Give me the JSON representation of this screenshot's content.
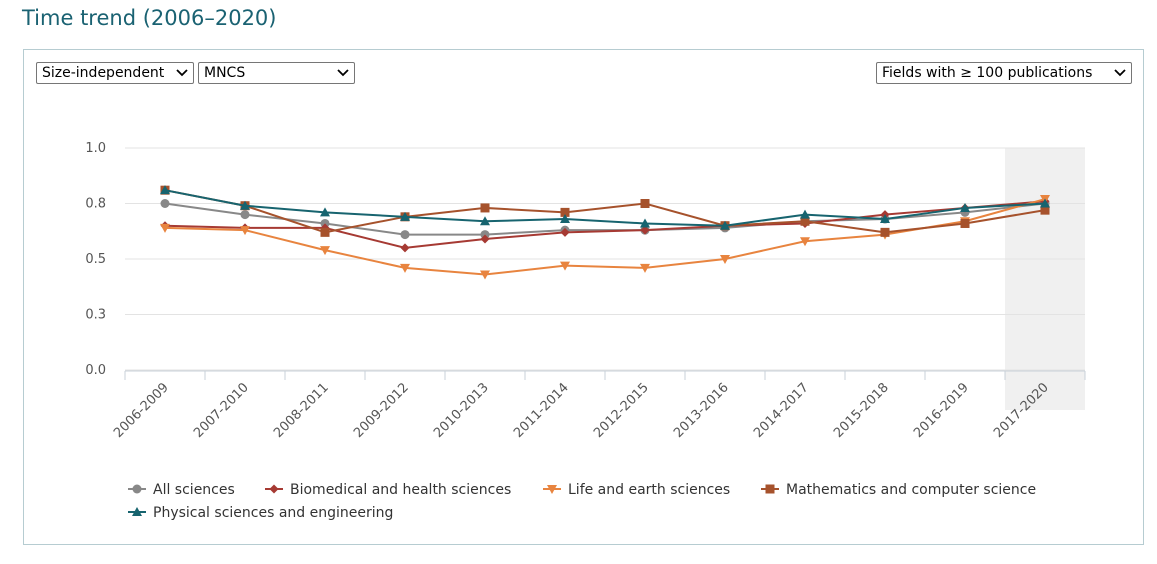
{
  "page": {
    "title": "Time trend (2006–2020)"
  },
  "controls": {
    "indicator_type": "Size-independent",
    "indicator": "MNCS",
    "fields_filter": "Fields with ≥ 100 publications"
  },
  "chart_data": {
    "type": "line",
    "title": "",
    "xlabel": "",
    "ylabel": "",
    "ylim": [
      0.0,
      1.0
    ],
    "y_ticks": [
      "0.0",
      "0.3",
      "0.5",
      "0.8",
      "1.0"
    ],
    "y_tick_values": [
      0.0,
      0.25,
      0.5,
      0.75,
      1.0
    ],
    "grid": true,
    "legend_position": "bottom",
    "highlighted_category": "2017-2020",
    "categories": [
      "2006-2009",
      "2007-2010",
      "2008-2011",
      "2009-2012",
      "2010-2013",
      "2011-2014",
      "2012-2015",
      "2013-2016",
      "2014-2017",
      "2015-2018",
      "2016-2019",
      "2017-2020"
    ],
    "series": [
      {
        "name": "All sciences",
        "color": "#888888",
        "marker": "circle",
        "values": [
          0.75,
          0.7,
          0.66,
          0.61,
          0.61,
          0.63,
          0.63,
          0.64,
          0.67,
          0.68,
          0.71,
          0.75
        ]
      },
      {
        "name": "Biomedical and health sciences",
        "color": "#a63a33",
        "marker": "diamond",
        "values": [
          0.65,
          0.64,
          0.64,
          0.55,
          0.59,
          0.62,
          0.63,
          0.65,
          0.66,
          0.7,
          0.73,
          0.76
        ]
      },
      {
        "name": "Life and earth sciences",
        "color": "#e8843f",
        "marker": "triangle-down",
        "values": [
          0.64,
          0.63,
          0.54,
          0.46,
          0.43,
          0.47,
          0.46,
          0.5,
          0.58,
          0.61,
          0.67,
          0.77
        ]
      },
      {
        "name": "Mathematics and computer science",
        "color": "#a6522c",
        "marker": "square",
        "values": [
          0.81,
          0.74,
          0.62,
          0.69,
          0.73,
          0.71,
          0.75,
          0.65,
          0.67,
          0.62,
          0.66,
          0.72
        ]
      },
      {
        "name": "Physical sciences and engineering",
        "color": "#17646f",
        "marker": "triangle-up",
        "values": [
          0.81,
          0.74,
          0.71,
          0.69,
          0.67,
          0.68,
          0.66,
          0.65,
          0.7,
          0.68,
          0.73,
          0.75
        ]
      }
    ]
  },
  "icons": {
    "dropdown": "chevron-down-icon"
  }
}
